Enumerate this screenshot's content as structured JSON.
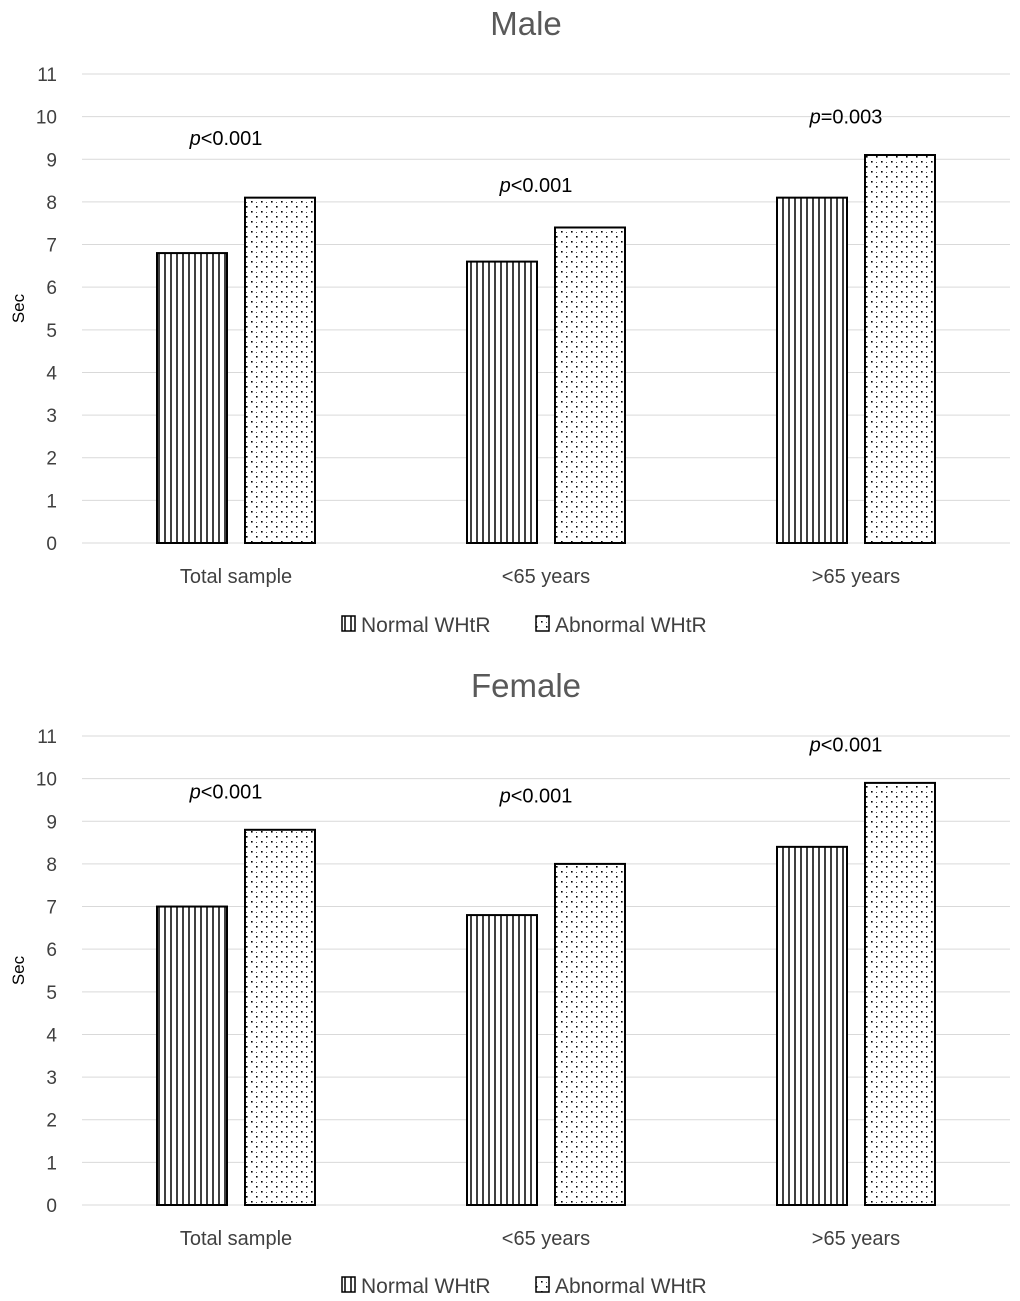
{
  "chart_data": [
    {
      "type": "bar",
      "title": "Male",
      "ylabel": "Sec",
      "xlabel": "",
      "ylim": [
        0,
        11
      ],
      "yticks": [
        0,
        1,
        2,
        3,
        4,
        5,
        6,
        7,
        8,
        9,
        10,
        11
      ],
      "grid": true,
      "legend_position": "bottom",
      "categories": [
        "Total sample",
        "<65 years",
        ">65 years"
      ],
      "series": [
        {
          "name": "Normal WHtR",
          "pattern": "vertical-lines",
          "values": [
            6.8,
            6.6,
            8.1
          ]
        },
        {
          "name": "Abnormal WHtR",
          "pattern": "dots",
          "values": [
            8.1,
            7.4,
            9.1
          ]
        }
      ],
      "annotations": [
        {
          "category": "Total sample",
          "prefix": "p",
          "text": "<0.001",
          "y": 9.5
        },
        {
          "category": "<65 years",
          "prefix": "p",
          "text": "<0.001",
          "y": 8.4
        },
        {
          "category": ">65 years",
          "prefix": "p",
          "text": "=0.003",
          "y": 10.0
        }
      ]
    },
    {
      "type": "bar",
      "title": "Female",
      "ylabel": "Sec",
      "xlabel": "",
      "ylim": [
        0,
        11
      ],
      "yticks": [
        0,
        1,
        2,
        3,
        4,
        5,
        6,
        7,
        8,
        9,
        10,
        11
      ],
      "grid": true,
      "legend_position": "bottom",
      "categories": [
        "Total sample",
        "<65 years",
        ">65 years"
      ],
      "series": [
        {
          "name": "Normal WHtR",
          "pattern": "vertical-lines",
          "values": [
            7.0,
            6.8,
            8.4
          ]
        },
        {
          "name": "Abnormal WHtR",
          "pattern": "dots",
          "values": [
            8.8,
            8.0,
            9.9
          ]
        }
      ],
      "annotations": [
        {
          "category": "Total sample",
          "prefix": "p",
          "text": "<0.001",
          "y": 9.7
        },
        {
          "category": "<65 years",
          "prefix": "p",
          "text": "<0.001",
          "y": 9.6
        },
        {
          "category": ">65 years",
          "prefix": "p",
          "text": "<0.001",
          "y": 10.8
        }
      ]
    }
  ]
}
